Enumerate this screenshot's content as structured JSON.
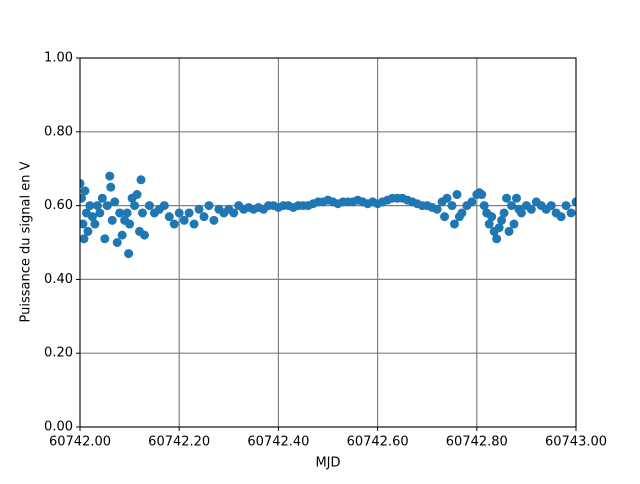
{
  "chart_data": {
    "type": "scatter",
    "xlabel": "MJD",
    "ylabel": "Puissance du signal en V",
    "color": "#1f77b4",
    "grid": true,
    "xlim": [
      60742.0,
      60743.0
    ],
    "xticks": [
      {
        "value": 60742.0,
        "label": "60742.00"
      },
      {
        "value": 60742.2,
        "label": "60742.20"
      },
      {
        "value": 60742.4,
        "label": "60742.40"
      },
      {
        "value": 60742.6,
        "label": "60742.60"
      },
      {
        "value": 60742.8,
        "label": "60742.80"
      },
      {
        "value": 60743.0,
        "label": "60743.00"
      }
    ],
    "ylim": [
      0,
      1
    ],
    "yticks": [
      {
        "value": 0,
        "label": "0.00"
      },
      {
        "value": 0.2,
        "label": "0.20"
      },
      {
        "value": 0.4,
        "label": "0.40"
      },
      {
        "value": 0.6,
        "label": "0.60"
      },
      {
        "value": 0.8,
        "label": "0.80"
      },
      {
        "value": 1,
        "label": "1.00"
      }
    ],
    "x": [
      60742.0,
      60742.003,
      60742.006,
      60742.008,
      60742.01,
      60742.013,
      60742.016,
      60742.02,
      60742.025,
      60742.03,
      60742.035,
      60742.04,
      60742.045,
      60742.05,
      60742.055,
      60742.06,
      60742.062,
      60742.065,
      60742.07,
      60742.075,
      60742.08,
      60742.085,
      60742.09,
      60742.095,
      60742.098,
      60742.1,
      60742.105,
      60742.11,
      60742.115,
      60742.12,
      60742.123,
      60742.126,
      60742.13,
      60742.14,
      60742.15,
      60742.16,
      60742.17,
      60742.18,
      60742.19,
      60742.2,
      60742.21,
      60742.22,
      60742.23,
      60742.24,
      60742.25,
      60742.26,
      60742.27,
      60742.28,
      60742.29,
      60742.3,
      60742.31,
      60742.32,
      60742.33,
      60742.34,
      60742.35,
      60742.36,
      60742.37,
      60742.38,
      60742.39,
      60742.4,
      60742.41,
      60742.42,
      60742.43,
      60742.44,
      60742.45,
      60742.46,
      60742.47,
      60742.48,
      60742.49,
      60742.5,
      60742.51,
      60742.52,
      60742.53,
      60742.54,
      60742.55,
      60742.56,
      60742.57,
      60742.58,
      60742.59,
      60742.6,
      60742.61,
      60742.62,
      60742.63,
      60742.64,
      60742.65,
      60742.66,
      60742.67,
      60742.68,
      60742.69,
      60742.7,
      60742.71,
      60742.72,
      60742.73,
      60742.735,
      60742.74,
      60742.75,
      60742.755,
      60742.76,
      60742.765,
      60742.77,
      60742.78,
      60742.79,
      60742.8,
      60742.805,
      60742.81,
      60742.815,
      60742.82,
      60742.825,
      60742.83,
      60742.835,
      60742.84,
      60742.845,
      60742.85,
      60742.855,
      60742.86,
      60742.865,
      60742.87,
      60742.875,
      60742.88,
      60742.885,
      60742.89,
      60742.9,
      60742.91,
      60742.92,
      60742.93,
      60742.94,
      60742.95,
      60742.96,
      60742.97,
      60742.98,
      60742.99,
      60743.0
    ],
    "values": [
      0.66,
      0.62,
      0.55,
      0.51,
      0.64,
      0.58,
      0.53,
      0.6,
      0.57,
      0.55,
      0.6,
      0.58,
      0.62,
      0.51,
      0.6,
      0.68,
      0.65,
      0.56,
      0.61,
      0.5,
      0.58,
      0.52,
      0.56,
      0.58,
      0.47,
      0.55,
      0.62,
      0.6,
      0.63,
      0.53,
      0.67,
      0.58,
      0.52,
      0.6,
      0.58,
      0.59,
      0.6,
      0.57,
      0.55,
      0.58,
      0.56,
      0.58,
      0.55,
      0.59,
      0.57,
      0.6,
      0.56,
      0.59,
      0.58,
      0.59,
      0.58,
      0.6,
      0.59,
      0.595,
      0.59,
      0.595,
      0.59,
      0.6,
      0.6,
      0.595,
      0.6,
      0.6,
      0.595,
      0.6,
      0.6,
      0.6,
      0.605,
      0.61,
      0.61,
      0.615,
      0.61,
      0.605,
      0.61,
      0.61,
      0.61,
      0.615,
      0.61,
      0.605,
      0.61,
      0.605,
      0.61,
      0.615,
      0.62,
      0.62,
      0.62,
      0.615,
      0.61,
      0.605,
      0.6,
      0.6,
      0.595,
      0.59,
      0.61,
      0.57,
      0.62,
      0.6,
      0.55,
      0.63,
      0.57,
      0.58,
      0.6,
      0.61,
      0.63,
      0.635,
      0.63,
      0.6,
      0.58,
      0.55,
      0.57,
      0.53,
      0.51,
      0.54,
      0.56,
      0.58,
      0.62,
      0.53,
      0.6,
      0.55,
      0.62,
      0.59,
      0.58,
      0.6,
      0.59,
      0.61,
      0.6,
      0.59,
      0.6,
      0.58,
      0.57,
      0.6,
      0.58,
      0.61
    ]
  }
}
